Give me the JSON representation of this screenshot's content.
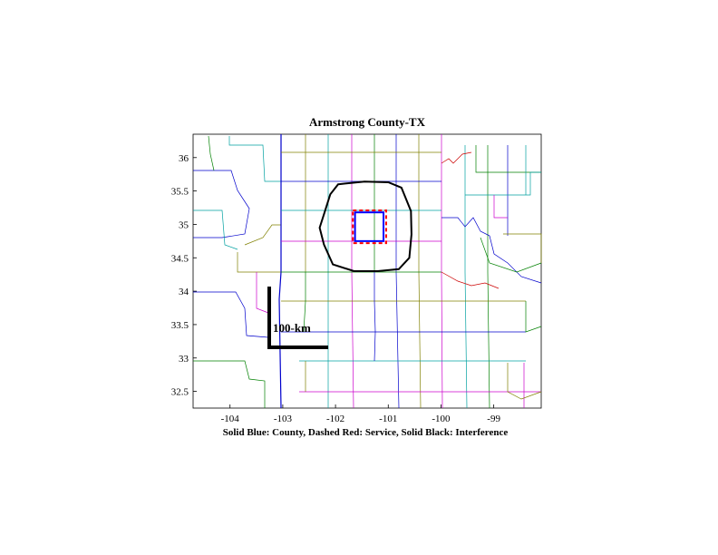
{
  "figure": {
    "title": "Armstrong County-TX",
    "caption": "Solid Blue: County, Dashed Red: Service, Solid Black: Interference",
    "scale_bar_label": "100-km"
  },
  "chart_data": {
    "type": "map",
    "xlim": [
      -104.7,
      -98.1
    ],
    "ylim": [
      32.25,
      36.35
    ],
    "x_ticks": [
      -104,
      -103,
      -102,
      -101,
      -100,
      -99
    ],
    "y_ticks": [
      32.5,
      33,
      33.5,
      34,
      34.5,
      35,
      35.5,
      36
    ],
    "x_tick_labels": [
      "-104",
      "-103",
      "-102",
      "-101",
      "-100",
      "-99"
    ],
    "y_tick_labels": [
      "32.5",
      "33",
      "33.5",
      "34",
      "34.5",
      "35",
      "35.5",
      "36"
    ],
    "county_box": {
      "lon": [
        -101.63,
        -101.09
      ],
      "lat": [
        34.75,
        35.18
      ]
    },
    "service_box": {
      "lon": [
        -101.67,
        -101.04
      ],
      "lat": [
        34.72,
        35.21
      ]
    },
    "interference_contour": [
      [
        -101.95,
        35.6
      ],
      [
        -101.45,
        35.64
      ],
      [
        -101.0,
        35.63
      ],
      [
        -100.75,
        35.55
      ],
      [
        -100.57,
        35.2
      ],
      [
        -100.56,
        34.85
      ],
      [
        -100.6,
        34.5
      ],
      [
        -100.8,
        34.33
      ],
      [
        -101.2,
        34.3
      ],
      [
        -101.65,
        34.3
      ],
      [
        -102.05,
        34.4
      ],
      [
        -102.22,
        34.7
      ],
      [
        -102.3,
        34.95
      ],
      [
        -102.2,
        35.2
      ],
      [
        -102.1,
        35.45
      ]
    ],
    "line_colors": {
      "county": "#0000ff",
      "service": "#ff0000",
      "interference": "#000000"
    }
  }
}
